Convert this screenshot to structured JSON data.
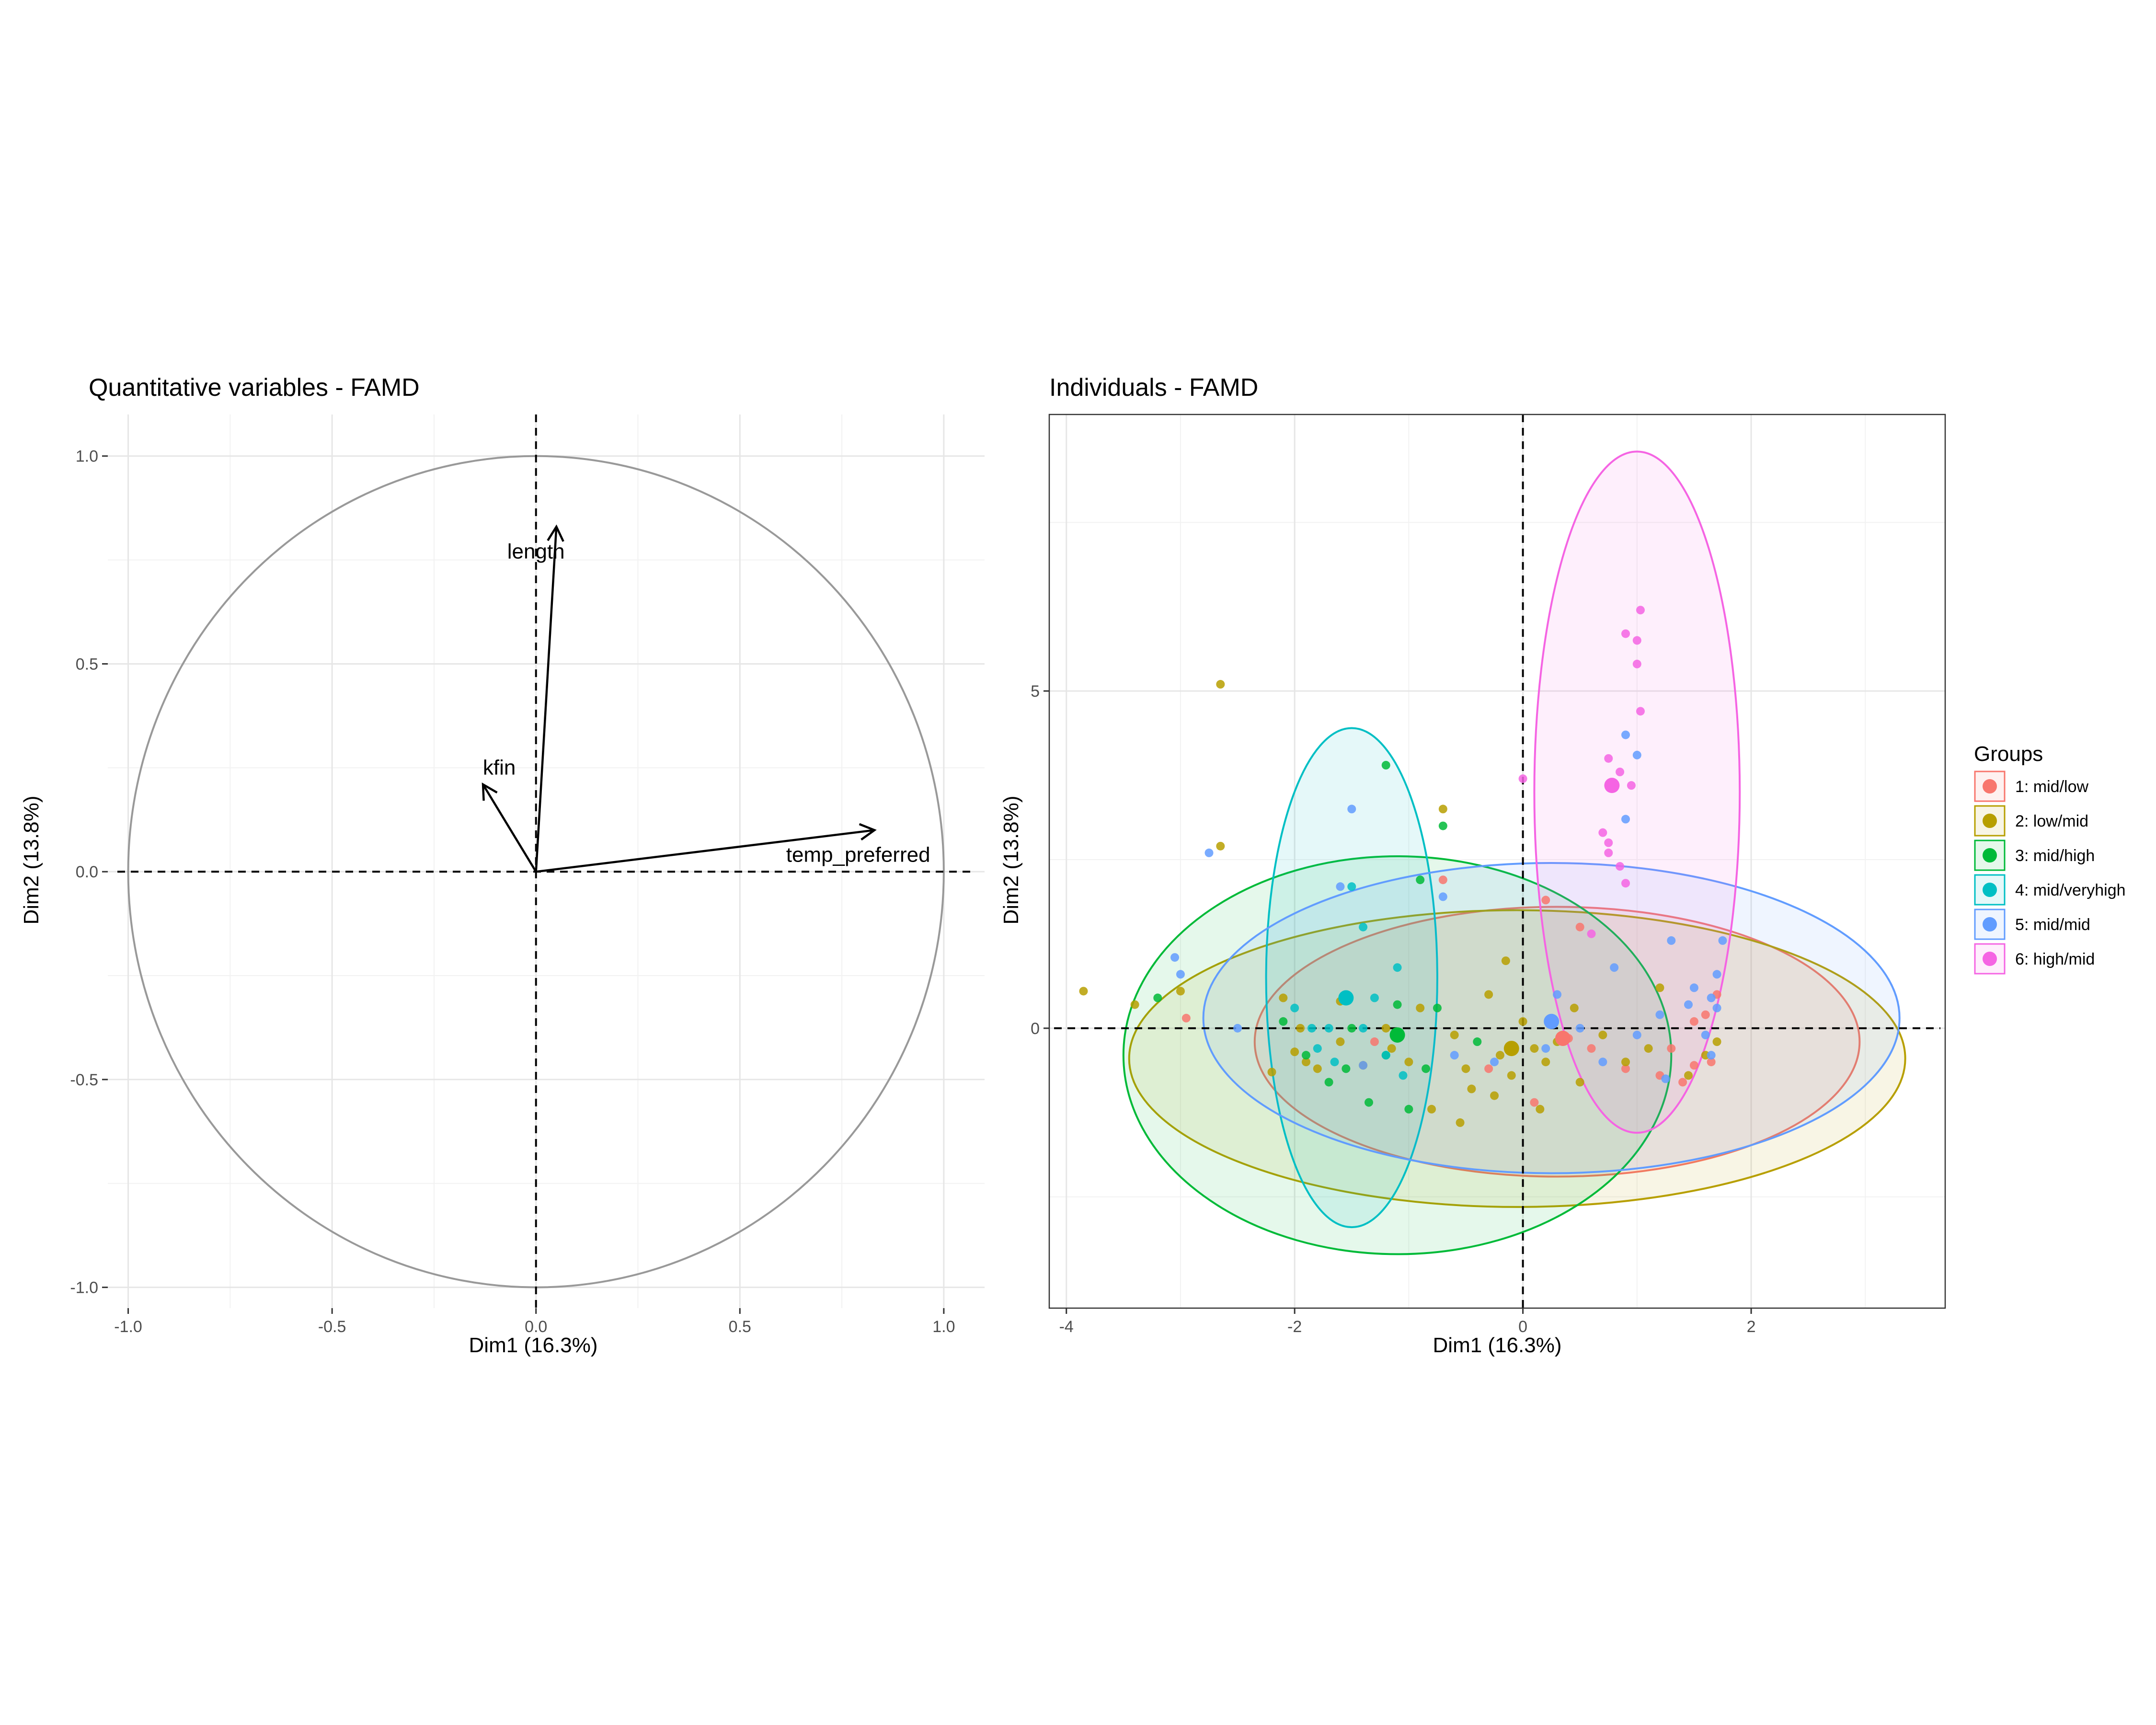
{
  "chart_data": [
    {
      "type": "scatter",
      "subtype": "correlation-circle",
      "title": "Quantitative variables - FAMD",
      "xlabel": "Dim1 (16.3%)",
      "ylabel": "Dim2 (13.8%)",
      "xlim": [
        -1.05,
        1.1
      ],
      "ylim": [
        -1.05,
        1.1
      ],
      "xticks": [
        -1.0,
        -0.5,
        0.0,
        0.5,
        1.0
      ],
      "yticks": [
        -1.0,
        -0.5,
        0.0,
        0.5,
        1.0
      ],
      "tick_labels": [
        "-1.0",
        "-0.5",
        "0.0",
        "0.5",
        "1.0"
      ],
      "grid": true,
      "circle_color": "#999999",
      "arrow_color": "#000000",
      "variables": [
        {
          "name": "length",
          "x": 0.05,
          "y": 0.83,
          "label_x": 0.0,
          "label_y": 0.77
        },
        {
          "name": "kfin",
          "x": -0.13,
          "y": 0.21,
          "label_x": -0.09,
          "label_y": 0.25
        },
        {
          "name": "temp_preferred",
          "x": 0.83,
          "y": 0.1,
          "label_x": 0.79,
          "label_y": 0.04
        }
      ]
    },
    {
      "type": "scatter",
      "title": "Individuals - FAMD",
      "xlabel": "Dim1 (16.3%)",
      "ylabel": "Dim2 (13.8%)",
      "xlim": [
        -4.15,
        3.7
      ],
      "ylim": [
        -4.15,
        9.1
      ],
      "xticks": [
        -4,
        -2,
        0,
        2
      ],
      "yticks": [
        0,
        5
      ],
      "tick_labels_x": [
        "-4",
        "-2",
        "0",
        "2"
      ],
      "tick_labels_y": [
        "0",
        "5"
      ],
      "grid": true,
      "legend_title": "Groups",
      "legend_position": "right",
      "series": [
        {
          "name": "1: mid/low",
          "color": "#F8766D",
          "centroid": [
            0.35,
            -0.15
          ],
          "ellipse": {
            "cx": 0.3,
            "cy": -0.2,
            "rx": 2.65,
            "ry": 2.0
          },
          "points": [
            [
              -2.95,
              0.15
            ],
            [
              -1.3,
              -0.2
            ],
            [
              -0.3,
              -0.6
            ],
            [
              0.4,
              -0.15
            ],
            [
              0.6,
              -0.3
            ],
            [
              0.9,
              -0.6
            ],
            [
              1.3,
              -0.3
            ],
            [
              1.4,
              -0.8
            ],
            [
              1.5,
              -0.55
            ],
            [
              1.6,
              0.2
            ],
            [
              1.65,
              -0.5
            ],
            [
              1.7,
              0.5
            ],
            [
              -0.7,
              2.2
            ],
            [
              0.2,
              1.9
            ],
            [
              1.5,
              0.1
            ],
            [
              0.1,
              -1.1
            ],
            [
              1.2,
              -0.7
            ],
            [
              0.5,
              1.5
            ]
          ]
        },
        {
          "name": "2: low/mid",
          "color": "#B79F00",
          "centroid": [
            -0.1,
            -0.3
          ],
          "ellipse": {
            "cx": -0.05,
            "cy": -0.45,
            "rx": 3.4,
            "ry": 2.2
          },
          "points": [
            [
              -3.85,
              0.55
            ],
            [
              -3.4,
              0.35
            ],
            [
              -2.65,
              5.1
            ],
            [
              -2.65,
              2.7
            ],
            [
              -2.1,
              0.45
            ],
            [
              -1.9,
              -0.5
            ],
            [
              -1.8,
              -0.6
            ],
            [
              -1.6,
              -0.2
            ],
            [
              -1.4,
              -0.55
            ],
            [
              -1.2,
              0.0
            ],
            [
              -1.15,
              -0.3
            ],
            [
              -1.0,
              -0.5
            ],
            [
              -0.9,
              0.3
            ],
            [
              -0.7,
              3.25
            ],
            [
              -0.6,
              -0.1
            ],
            [
              -0.5,
              -0.6
            ],
            [
              -0.45,
              -0.9
            ],
            [
              -0.3,
              0.5
            ],
            [
              -0.2,
              -0.4
            ],
            [
              -0.15,
              1.0
            ],
            [
              -0.1,
              -0.7
            ],
            [
              0.0,
              0.1
            ],
            [
              0.1,
              -0.3
            ],
            [
              0.2,
              -0.5
            ],
            [
              0.3,
              -0.2
            ],
            [
              0.45,
              0.3
            ],
            [
              0.5,
              -0.8
            ],
            [
              0.7,
              -0.1
            ],
            [
              0.9,
              -0.5
            ],
            [
              1.1,
              -0.3
            ],
            [
              1.2,
              0.6
            ],
            [
              1.45,
              -0.7
            ],
            [
              1.6,
              -0.4
            ],
            [
              1.7,
              -0.2
            ],
            [
              -0.8,
              -1.2
            ],
            [
              -0.55,
              -1.4
            ],
            [
              -2.0,
              -0.35
            ],
            [
              -2.2,
              -0.65
            ],
            [
              -0.25,
              -1.0
            ],
            [
              0.15,
              -1.2
            ],
            [
              -1.6,
              0.4
            ],
            [
              -1.95,
              0.0
            ],
            [
              -3.0,
              0.55
            ]
          ]
        },
        {
          "name": "3: mid/high",
          "color": "#00BA38",
          "centroid": [
            -1.1,
            -0.1
          ],
          "ellipse": {
            "cx": -1.1,
            "cy": -0.4,
            "rx": 2.4,
            "ry": 2.95
          },
          "points": [
            [
              -3.2,
              0.45
            ],
            [
              -1.2,
              3.9
            ],
            [
              -0.7,
              3.0
            ],
            [
              -0.9,
              2.2
            ],
            [
              -1.5,
              0.0
            ],
            [
              -1.2,
              -0.4
            ],
            [
              -1.0,
              -1.2
            ],
            [
              -0.85,
              -0.6
            ],
            [
              -1.7,
              -0.8
            ],
            [
              -1.35,
              -1.1
            ],
            [
              -2.1,
              0.1
            ],
            [
              -1.9,
              -0.4
            ],
            [
              -0.4,
              -0.2
            ],
            [
              -1.1,
              0.35
            ],
            [
              -0.75,
              0.3
            ],
            [
              -1.55,
              -0.6
            ]
          ]
        },
        {
          "name": "4: mid/veryhigh",
          "color": "#00BFC4",
          "centroid": [
            -1.55,
            0.45
          ],
          "ellipse": {
            "cx": -1.5,
            "cy": 0.75,
            "rx": 0.75,
            "ry": 3.7
          },
          "points": [
            [
              -1.5,
              2.1
            ],
            [
              -1.4,
              1.5
            ],
            [
              -1.4,
              0.0
            ],
            [
              -1.8,
              -0.3
            ],
            [
              -1.7,
              0.0
            ],
            [
              -1.2,
              -0.4
            ],
            [
              -1.05,
              -0.7
            ],
            [
              -1.3,
              0.45
            ],
            [
              -1.65,
              -0.5
            ],
            [
              -2.0,
              0.3
            ],
            [
              -1.1,
              0.9
            ],
            [
              -1.85,
              0.0
            ]
          ]
        },
        {
          "name": "5: mid/mid",
          "color": "#619CFF",
          "centroid": [
            0.25,
            0.1
          ],
          "ellipse": {
            "cx": 0.25,
            "cy": 0.15,
            "rx": 3.05,
            "ry": 2.3
          },
          "points": [
            [
              -2.75,
              2.6
            ],
            [
              -1.5,
              3.25
            ],
            [
              -1.6,
              2.1
            ],
            [
              -3.05,
              1.05
            ],
            [
              -3.0,
              0.8
            ],
            [
              -2.5,
              0.0
            ],
            [
              -0.7,
              1.95
            ],
            [
              0.9,
              3.1
            ],
            [
              0.9,
              4.35
            ],
            [
              1.0,
              4.05
            ],
            [
              1.3,
              1.3
            ],
            [
              1.75,
              1.3
            ],
            [
              0.7,
              -0.5
            ],
            [
              1.0,
              -0.1
            ],
            [
              1.2,
              0.2
            ],
            [
              1.45,
              0.35
            ],
            [
              1.65,
              0.45
            ],
            [
              1.7,
              0.8
            ],
            [
              1.7,
              0.3
            ],
            [
              1.65,
              -0.4
            ],
            [
              0.3,
              0.5
            ],
            [
              0.5,
              0.0
            ],
            [
              -0.25,
              -0.5
            ],
            [
              -0.6,
              -0.4
            ],
            [
              -1.4,
              -0.55
            ],
            [
              0.8,
              0.9
            ],
            [
              1.5,
              0.6
            ],
            [
              0.2,
              -0.3
            ],
            [
              1.25,
              -0.75
            ],
            [
              1.6,
              -0.1
            ]
          ]
        },
        {
          "name": "6: high/mid",
          "color": "#F564E3",
          "centroid": [
            0.78,
            3.6
          ],
          "ellipse": {
            "cx": 1.0,
            "cy": 3.5,
            "rx": 0.9,
            "ry": 5.05
          },
          "points": [
            [
              1.03,
              6.2
            ],
            [
              0.9,
              5.85
            ],
            [
              1.0,
              5.75
            ],
            [
              1.0,
              5.4
            ],
            [
              1.03,
              4.7
            ],
            [
              0.75,
              4.0
            ],
            [
              0.85,
              3.8
            ],
            [
              0.95,
              3.6
            ],
            [
              0.75,
              2.75
            ],
            [
              0.7,
              2.9
            ],
            [
              0.75,
              2.6
            ],
            [
              0.85,
              2.4
            ],
            [
              0.9,
              2.15
            ],
            [
              0.0,
              3.7
            ],
            [
              0.6,
              1.4
            ]
          ]
        }
      ]
    }
  ]
}
